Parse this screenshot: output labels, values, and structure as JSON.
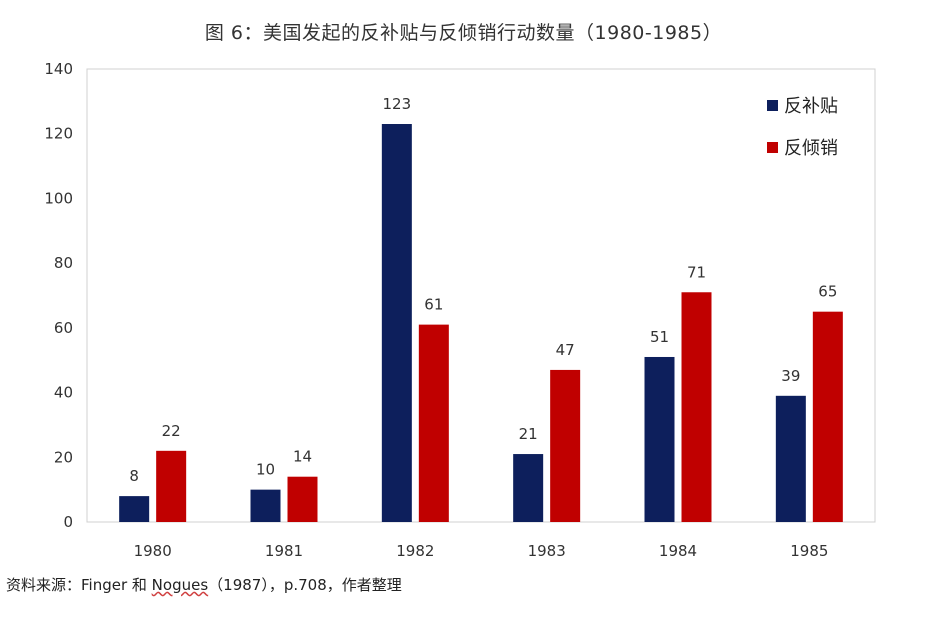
{
  "chart_data": {
    "type": "bar",
    "title": "图 6：美国发起的反补贴与反倾销行动数量（1980-1985）",
    "categories": [
      "1980",
      "1981",
      "1982",
      "1983",
      "1984",
      "1985"
    ],
    "series": [
      {
        "name": "反补贴",
        "values": [
          8,
          10,
          123,
          21,
          51,
          39
        ],
        "color": "#0d1f5c"
      },
      {
        "name": "反倾销",
        "values": [
          22,
          14,
          61,
          47,
          71,
          65
        ],
        "color": "#c00000"
      }
    ],
    "ylim": [
      0,
      140
    ],
    "yticks": [
      0,
      20,
      40,
      60,
      80,
      100,
      120,
      140
    ],
    "grid": false,
    "legend_position": "top-right",
    "data_labels": true
  },
  "source": {
    "prefix": "资料来源：Finger 和 ",
    "underlined": "Nogues",
    "suffix": "（1987），p.708，作者整理"
  }
}
